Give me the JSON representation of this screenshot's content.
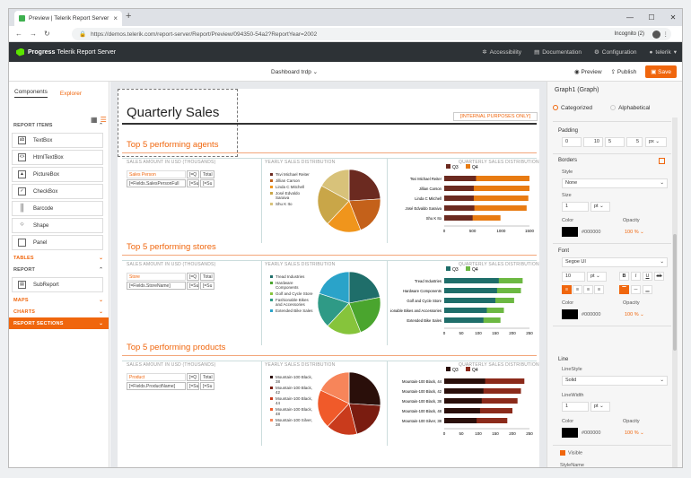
{
  "browser": {
    "tab_title": "Preview | Telerik Report Server",
    "url": "https://demos.telerik.com/report-server/Report/Preview/094350-54a2?ReportYear=2002",
    "incognito": "Incognito (2)"
  },
  "appbar": {
    "brand": "Progress",
    "product": "Telerik Report Server",
    "nav": [
      "Accessibility",
      "Documentation",
      "Configuration",
      "telerik"
    ]
  },
  "toolbar": {
    "report_name": "Dashboard trdp",
    "preview": "Preview",
    "publish": "Publish",
    "save": "Save"
  },
  "left_panel": {
    "tabs": [
      "Components",
      "Explorer"
    ],
    "sections": {
      "report_items": "REPORT ITEMS",
      "tables": "TABLES",
      "report": "REPORT",
      "maps": "MAPS",
      "charts": "CHARTS",
      "report_sections": "REPORT SECTIONS"
    },
    "items": [
      "TextBox",
      "HtmlTextBox",
      "PictureBox",
      "CheckBox",
      "Barcode",
      "Shape",
      "Panel"
    ],
    "report_items": [
      "SubReport"
    ]
  },
  "report": {
    "title": "Quarterly Sales",
    "internal": "[INTERNAL PURPOSES ONLY]",
    "col_sales": "SALES AMOUNT IN USD (THOUSANDS)",
    "col_dist": "YEARLY SALES DISTRIBUTION",
    "col_qdist": "QUARTERLY SALES DISTRIBUTION",
    "q3": "Q3",
    "q4": "Q4",
    "hdr_iq": "[=Q",
    "hdr_total": "Total",
    "fld_su": "[=Su",
    "sections": [
      {
        "title": "Top 5 performing agents",
        "label": "Sales Person",
        "field": "[=Fields.SalesPersonFull",
        "legend": [
          "Tsvi Michael Reiter",
          "Jillian Carson",
          "Linda C Mitchell",
          "José Edvaldo Saraiva",
          "Shu K Ito"
        ],
        "ticks": [
          "0",
          "500",
          "1000",
          "1500"
        ]
      },
      {
        "title": "Top 5 performing stores",
        "label": "Store",
        "field": "[=Fields.StoreName]",
        "legend": [
          "Tread Industries",
          "Hardware Components",
          "Golf and Cycle Store",
          "Fashionable Bikes and Accessories",
          "Extended Bike Sales"
        ],
        "ticks": [
          "0",
          "50",
          "100",
          "150",
          "200",
          "250"
        ]
      },
      {
        "title": "Top 5 performing products",
        "label": "Product",
        "field": "[=Fields.ProductName]",
        "legend": [
          "Mountain-100 Black, 38",
          "Mountain-100 Black, 42",
          "Mountain-100 Black, 44",
          "Mountain-100 Black, 48",
          "Mountain-100 Silver, 38"
        ],
        "ticks": [
          "0",
          "50",
          "100",
          "150",
          "200",
          "250"
        ]
      }
    ]
  },
  "chart_data": [
    {
      "type": "pie",
      "title": "",
      "categories": [
        "Tsvi Michael Reiter",
        "Jillian Carson",
        "Linda C Mitchell",
        "José Edvaldo Saraiva",
        "Shu K Ito"
      ],
      "values": [
        24,
        20,
        18,
        21,
        17
      ],
      "colors": [
        "#6b2a20",
        "#c4611a",
        "#f0951c",
        "#c9a648",
        "#d8c27a"
      ]
    },
    {
      "type": "bar",
      "orientation": "horizontal",
      "categories": [
        "Tsvi Michael Reiter",
        "Jillian Carson",
        "Linda C Mitchell",
        "José Edvaldo Saraiva",
        "Shu K Ito"
      ],
      "series": [
        {
          "name": "Q3",
          "values": [
            560,
            520,
            520,
            530,
            500
          ],
          "color": "#6b2a20"
        },
        {
          "name": "Q4",
          "values": [
            1560,
            1530,
            1480,
            1450,
            990
          ],
          "color": "#e87b12"
        }
      ],
      "xlim": [
        0,
        1500
      ]
    },
    {
      "type": "pie",
      "title": "",
      "categories": [
        "Tread Industries",
        "Hardware Components",
        "Golf and Cycle Store",
        "Fashionable Bikes and Accessories",
        "Extended Bike Sales"
      ],
      "values": [
        22,
        22,
        18,
        18,
        20
      ],
      "colors": [
        "#1f6e6a",
        "#4aa52e",
        "#86c43b",
        "#2f9a86",
        "#2aa3c9"
      ]
    },
    {
      "type": "bar",
      "orientation": "horizontal",
      "categories": [
        "Tread Industries",
        "Hardware Components",
        "Golf and Cycle Store",
        "Fashionable Bikes and Accessories",
        "Extended Bike Sales"
      ],
      "series": [
        {
          "name": "Q3",
          "values": [
            160,
            155,
            150,
            125,
            115
          ],
          "color": "#1f6e6a"
        },
        {
          "name": "Q4",
          "values": [
            230,
            225,
            205,
            175,
            165
          ],
          "color": "#6cb842"
        }
      ],
      "xlim": [
        0,
        250
      ]
    },
    {
      "type": "pie",
      "title": "",
      "categories": [
        "Mountain-100 Black, 38",
        "Mountain-100 Black, 42",
        "Mountain-100 Black, 44",
        "Mountain-100 Black, 48",
        "Mountain-100 Silver, 38"
      ],
      "values": [
        26,
        20,
        16,
        20,
        18
      ],
      "colors": [
        "#2a0f0a",
        "#7a1c10",
        "#c93b1c",
        "#f05a2a",
        "#f7855a"
      ]
    },
    {
      "type": "bar",
      "orientation": "horizontal",
      "categories": [
        "Mountain-100 Black, 44",
        "Mountain-100 Black, 42",
        "Mountain-100 Black, 38",
        "Mountain-100 Black, 48",
        "Mountain-100 Silver, 38"
      ],
      "series": [
        {
          "name": "Q3",
          "values": [
            120,
            115,
            110,
            105,
            95
          ],
          "color": "#2a0f0a"
        },
        {
          "name": "Q4",
          "values": [
            235,
            225,
            215,
            200,
            185
          ],
          "color": "#8b2a1a"
        }
      ],
      "xlim": [
        0,
        250
      ]
    }
  ],
  "right_panel": {
    "title": "Graph1 (Graph)",
    "mode_categorized": "Categorized",
    "mode_alphabetical": "Alphabetical",
    "padding": {
      "label": "Padding",
      "values": [
        "0",
        "10",
        "5",
        "5"
      ],
      "unit": "px"
    },
    "borders": {
      "label": "Borders",
      "style_label": "Style",
      "style": "None",
      "size_label": "Size",
      "size": "1",
      "unit": "pt",
      "color_label": "Color",
      "color": "#000000",
      "opacity_label": "Opacity",
      "opacity": "100"
    },
    "font": {
      "label": "Font",
      "family": "Segoe UI",
      "size": "10",
      "unit": "pt",
      "color_label": "Color",
      "color": "#000000",
      "opacity_label": "Opacity",
      "opacity": "100"
    },
    "line": {
      "label": "Line",
      "style_label": "LineStyle",
      "style": "Solid",
      "width_label": "LineWidth",
      "width": "1",
      "unit": "pt",
      "color_label": "Color",
      "color": "#000000",
      "opacity_label": "Opacity",
      "opacity": "100"
    },
    "visible": "Visible",
    "stylename": "StyleName",
    "percent": "%"
  }
}
